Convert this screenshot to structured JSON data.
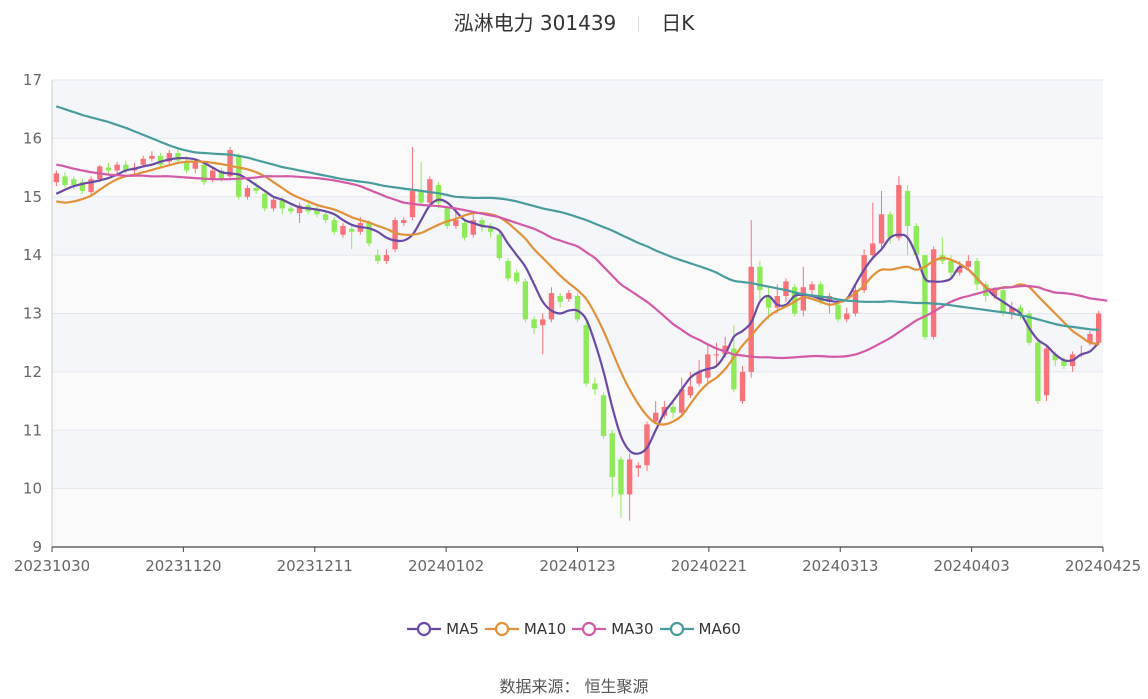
{
  "header": {
    "name": "泓淋电力 301439",
    "period": "日K"
  },
  "source": "数据来源： 恒生聚源",
  "colors": {
    "up": "#f87379",
    "down": "#8fea59",
    "MA5": "#6a4aa5",
    "MA10": "#e0913a",
    "MA30": "#d35aa6",
    "MA60": "#4a9c9c"
  },
  "chart_data": {
    "type": "candlestick",
    "ylim": [
      9,
      17
    ],
    "y_ticks": [
      "9",
      "10",
      "11",
      "12",
      "13",
      "14",
      "15",
      "16",
      "17"
    ],
    "x_ticks": [
      "20231030",
      "20231120",
      "20231211",
      "20240102",
      "20240123",
      "20240221",
      "20240313",
      "20240403",
      "20240425"
    ],
    "legend": [
      "MA5",
      "MA10",
      "MA30",
      "MA60"
    ],
    "candles": [
      [
        15.25,
        15.4,
        15.45,
        15.18
      ],
      [
        15.35,
        15.2,
        15.42,
        15.15
      ],
      [
        15.3,
        15.2,
        15.35,
        15.12
      ],
      [
        15.25,
        15.1,
        15.3,
        15.05
      ],
      [
        15.08,
        15.3,
        15.35,
        15.0
      ],
      [
        15.3,
        15.52,
        15.55,
        15.25
      ],
      [
        15.5,
        15.45,
        15.58,
        15.4
      ],
      [
        15.45,
        15.55,
        15.6,
        15.4
      ],
      [
        15.55,
        15.45,
        15.62,
        15.4
      ],
      [
        15.45,
        15.5,
        15.58,
        15.4
      ],
      [
        15.55,
        15.65,
        15.7,
        15.5
      ],
      [
        15.65,
        15.7,
        15.78,
        15.6
      ],
      [
        15.7,
        15.55,
        15.75,
        15.5
      ],
      [
        15.6,
        15.75,
        15.8,
        15.55
      ],
      [
        15.75,
        15.62,
        15.85,
        15.55
      ],
      [
        15.6,
        15.45,
        15.7,
        15.4
      ],
      [
        15.48,
        15.6,
        15.65,
        15.4
      ],
      [
        15.55,
        15.25,
        15.6,
        15.2
      ],
      [
        15.3,
        15.45,
        15.5,
        15.25
      ],
      [
        15.45,
        15.3,
        15.5,
        15.25
      ],
      [
        15.35,
        15.8,
        15.85,
        15.3
      ],
      [
        15.7,
        15.0,
        15.75,
        14.95
      ],
      [
        15.0,
        15.15,
        15.2,
        14.95
      ],
      [
        15.15,
        15.1,
        15.25,
        15.05
      ],
      [
        15.05,
        14.8,
        15.1,
        14.75
      ],
      [
        14.8,
        14.95,
        15.0,
        14.75
      ],
      [
        14.95,
        14.8,
        15.0,
        14.7
      ],
      [
        14.8,
        14.75,
        14.85,
        14.7
      ],
      [
        14.72,
        14.85,
        14.9,
        14.55
      ],
      [
        14.85,
        14.75,
        14.9,
        14.7
      ],
      [
        14.8,
        14.7,
        14.85,
        14.65
      ],
      [
        14.7,
        14.6,
        14.75,
        14.55
      ],
      [
        14.6,
        14.4,
        14.65,
        14.35
      ],
      [
        14.35,
        14.5,
        14.55,
        14.3
      ],
      [
        14.45,
        14.4,
        14.5,
        14.1
      ],
      [
        14.4,
        14.55,
        14.65,
        14.35
      ],
      [
        14.55,
        14.2,
        14.6,
        14.15
      ],
      [
        14.0,
        13.9,
        14.1,
        13.85
      ],
      [
        13.9,
        14.0,
        14.1,
        13.85
      ],
      [
        14.1,
        14.6,
        14.65,
        14.05
      ],
      [
        14.55,
        14.6,
        14.65,
        14.5
      ],
      [
        14.65,
        15.1,
        15.85,
        14.6
      ],
      [
        15.1,
        14.9,
        15.6,
        14.85
      ],
      [
        14.9,
        15.3,
        15.35,
        14.85
      ],
      [
        15.2,
        14.9,
        15.25,
        14.8
      ],
      [
        14.8,
        14.5,
        14.85,
        14.45
      ],
      [
        14.5,
        14.6,
        14.8,
        14.45
      ],
      [
        14.55,
        14.3,
        14.6,
        14.25
      ],
      [
        14.35,
        14.6,
        14.7,
        14.3
      ],
      [
        14.6,
        14.5,
        14.65,
        14.4
      ],
      [
        14.5,
        14.4,
        14.55,
        14.3
      ],
      [
        14.35,
        13.95,
        14.4,
        13.9
      ],
      [
        13.9,
        13.6,
        13.95,
        13.55
      ],
      [
        13.7,
        13.55,
        13.75,
        13.5
      ],
      [
        13.55,
        12.9,
        13.6,
        12.85
      ],
      [
        12.9,
        12.75,
        12.95,
        12.65
      ],
      [
        12.8,
        12.9,
        13.0,
        12.3
      ],
      [
        12.9,
        13.35,
        13.45,
        12.85
      ],
      [
        13.3,
        13.2,
        13.35,
        13.1
      ],
      [
        13.25,
        13.35,
        13.4,
        13.2
      ],
      [
        13.3,
        12.9,
        13.35,
        12.85
      ],
      [
        12.8,
        11.8,
        12.85,
        11.75
      ],
      [
        11.8,
        11.7,
        11.9,
        11.6
      ],
      [
        11.6,
        10.9,
        11.65,
        10.85
      ],
      [
        10.95,
        10.2,
        11.0,
        9.85
      ],
      [
        10.5,
        9.9,
        10.55,
        9.5
      ],
      [
        9.9,
        10.5,
        10.6,
        9.45
      ],
      [
        10.35,
        10.4,
        10.45,
        10.2
      ],
      [
        10.4,
        11.1,
        11.15,
        10.3
      ],
      [
        11.15,
        11.3,
        11.5,
        11.1
      ],
      [
        11.25,
        11.4,
        11.5,
        11.2
      ],
      [
        11.4,
        11.3,
        11.5,
        11.2
      ],
      [
        11.3,
        11.7,
        11.9,
        11.25
      ],
      [
        11.6,
        11.75,
        12.0,
        11.55
      ],
      [
        11.8,
        12.0,
        12.2,
        11.75
      ],
      [
        11.9,
        12.3,
        12.45,
        11.8
      ],
      [
        12.3,
        12.3,
        12.5,
        12.1
      ],
      [
        12.3,
        12.45,
        12.6,
        12.25
      ],
      [
        12.4,
        11.7,
        12.8,
        11.65
      ],
      [
        11.5,
        12.0,
        12.1,
        11.45
      ],
      [
        12.0,
        13.8,
        14.6,
        11.9
      ],
      [
        13.8,
        13.4,
        13.9,
        13.2
      ],
      [
        13.3,
        13.1,
        13.45,
        12.9
      ],
      [
        13.1,
        13.3,
        13.5,
        13.0
      ],
      [
        13.3,
        13.55,
        13.6,
        13.2
      ],
      [
        13.45,
        13.0,
        13.5,
        12.95
      ],
      [
        13.05,
        13.45,
        13.8,
        12.95
      ],
      [
        13.4,
        13.5,
        13.55,
        13.3
      ],
      [
        13.5,
        13.2,
        13.55,
        13.15
      ],
      [
        13.2,
        13.3,
        13.35,
        13.0
      ],
      [
        13.15,
        12.9,
        13.2,
        12.85
      ],
      [
        12.9,
        13.0,
        13.1,
        12.85
      ],
      [
        13.0,
        13.4,
        13.5,
        12.95
      ],
      [
        13.4,
        14.0,
        14.1,
        13.35
      ],
      [
        14.0,
        14.2,
        14.9,
        13.95
      ],
      [
        14.2,
        14.7,
        15.1,
        14.1
      ],
      [
        14.7,
        14.3,
        14.75,
        14.2
      ],
      [
        14.3,
        15.2,
        15.35,
        14.25
      ],
      [
        15.1,
        14.5,
        15.2,
        14.0
      ],
      [
        14.5,
        14.0,
        14.55,
        13.95
      ],
      [
        14.0,
        12.6,
        14.0,
        12.55
      ],
      [
        12.6,
        14.1,
        14.15,
        12.55
      ],
      [
        14.0,
        13.9,
        14.3,
        13.85
      ],
      [
        13.9,
        13.7,
        14.0,
        13.6
      ],
      [
        13.7,
        13.8,
        13.9,
        13.65
      ],
      [
        13.8,
        13.9,
        14.0,
        13.75
      ],
      [
        13.9,
        13.5,
        13.95,
        13.4
      ],
      [
        13.5,
        13.3,
        13.55,
        13.2
      ],
      [
        13.3,
        13.4,
        13.45,
        13.25
      ],
      [
        13.4,
        13.0,
        13.45,
        12.95
      ],
      [
        13.0,
        13.1,
        13.2,
        12.9
      ],
      [
        13.1,
        13.0,
        13.15,
        12.9
      ],
      [
        13.0,
        12.5,
        13.05,
        12.45
      ],
      [
        12.5,
        11.5,
        12.55,
        11.45
      ],
      [
        11.6,
        12.4,
        12.45,
        11.5
      ],
      [
        12.3,
        12.2,
        12.35,
        12.1
      ],
      [
        12.2,
        12.1,
        12.25,
        12.05
      ],
      [
        12.1,
        12.3,
        12.35,
        12.0
      ],
      [
        12.3,
        12.3,
        12.45,
        12.25
      ],
      [
        12.5,
        12.65,
        12.7,
        12.45
      ],
      [
        12.5,
        13.0,
        13.05,
        12.45
      ]
    ],
    "series": [
      {
        "name": "MA5",
        "values": [
          15.05,
          15.12,
          15.18,
          15.22,
          15.25,
          15.28,
          15.32,
          15.38,
          15.45,
          15.48,
          15.52,
          15.55,
          15.6,
          15.64,
          15.66,
          15.66,
          15.64,
          15.58,
          15.5,
          15.42,
          15.4,
          15.38,
          15.3,
          15.2,
          15.1,
          15.0,
          14.95,
          14.88,
          14.82,
          14.8,
          14.78,
          14.75,
          14.7,
          14.6,
          14.52,
          14.48,
          14.46,
          14.4,
          14.3,
          14.25,
          14.25,
          14.35,
          14.6,
          14.85,
          14.95,
          14.9,
          14.75,
          14.6,
          14.55,
          14.5,
          14.48,
          14.42,
          14.2,
          14.0,
          13.8,
          13.5,
          13.2,
          13.05,
          13.0,
          13.05,
          13.05,
          12.9,
          12.5,
          12.0,
          11.4,
          10.9,
          10.65,
          10.6,
          10.7,
          11.0,
          11.3,
          11.5,
          11.7,
          11.9,
          12.0,
          12.05,
          12.1,
          12.3,
          12.6,
          12.7,
          12.85,
          13.2,
          13.3,
          13.15,
          13.15,
          13.3,
          13.32,
          13.3,
          13.25,
          13.22,
          13.2,
          13.25,
          13.5,
          13.75,
          13.95,
          14.1,
          14.3,
          14.35,
          14.3,
          14.0,
          13.6,
          13.55,
          13.55,
          13.6,
          13.8,
          13.75,
          13.6,
          13.45,
          13.3,
          13.2,
          13.1,
          13.0,
          12.75,
          12.55,
          12.45,
          12.3,
          12.2,
          12.2,
          12.3,
          12.35,
          12.5
        ]
      },
      {
        "name": "MA10",
        "values": [
          14.92,
          14.9,
          14.92,
          14.96,
          15.02,
          15.12,
          15.22,
          15.3,
          15.35,
          15.38,
          15.42,
          15.46,
          15.5,
          15.54,
          15.58,
          15.6,
          15.6,
          15.6,
          15.58,
          15.56,
          15.53,
          15.5,
          15.47,
          15.42,
          15.35,
          15.25,
          15.15,
          15.05,
          14.98,
          14.92,
          14.86,
          14.82,
          14.78,
          14.72,
          14.65,
          14.6,
          14.56,
          14.5,
          14.45,
          14.38,
          14.35,
          14.35,
          14.38,
          14.45,
          14.52,
          14.58,
          14.62,
          14.68,
          14.72,
          14.72,
          14.7,
          14.65,
          14.55,
          14.42,
          14.28,
          14.1,
          13.95,
          13.8,
          13.65,
          13.52,
          13.4,
          13.25,
          13.0,
          12.7,
          12.35,
          12.0,
          11.7,
          11.45,
          11.25,
          11.12,
          11.1,
          11.15,
          11.25,
          11.45,
          11.65,
          11.8,
          11.9,
          12.05,
          12.25,
          12.45,
          12.62,
          12.8,
          12.95,
          13.05,
          13.12,
          13.2,
          13.28,
          13.25,
          13.2,
          13.15,
          13.18,
          13.25,
          13.35,
          13.48,
          13.65,
          13.75,
          13.75,
          13.78,
          13.8,
          13.75,
          13.8,
          13.9,
          13.95,
          13.92,
          13.85,
          13.75,
          13.6,
          13.45,
          13.4,
          13.45,
          13.45,
          13.5,
          13.45,
          13.3,
          13.15,
          13.0,
          12.85,
          12.7,
          12.6,
          12.5,
          12.48
        ]
      },
      {
        "name": "MA30",
        "values": [
          15.55,
          15.52,
          15.48,
          15.45,
          15.42,
          15.4,
          15.38,
          15.37,
          15.36,
          15.36,
          15.36,
          15.35,
          15.35,
          15.35,
          15.34,
          15.33,
          15.32,
          15.31,
          15.3,
          15.3,
          15.3,
          15.31,
          15.32,
          15.33,
          15.35,
          15.35,
          15.35,
          15.35,
          15.34,
          15.33,
          15.32,
          15.3,
          15.28,
          15.25,
          15.22,
          15.18,
          15.12,
          15.06,
          15.0,
          14.95,
          14.9,
          14.88,
          14.86,
          14.85,
          14.84,
          14.82,
          14.8,
          14.77,
          14.74,
          14.71,
          14.68,
          14.65,
          14.6,
          14.55,
          14.5,
          14.45,
          14.38,
          14.3,
          14.25,
          14.2,
          14.15,
          14.05,
          13.95,
          13.8,
          13.65,
          13.5,
          13.4,
          13.3,
          13.2,
          13.08,
          12.95,
          12.82,
          12.72,
          12.62,
          12.55,
          12.47,
          12.4,
          12.35,
          12.3,
          12.28,
          12.26,
          12.25,
          12.25,
          12.24,
          12.24,
          12.25,
          12.26,
          12.27,
          12.27,
          12.26,
          12.26,
          12.27,
          12.3,
          12.35,
          12.42,
          12.5,
          12.58,
          12.68,
          12.78,
          12.88,
          12.95,
          13.03,
          13.12,
          13.2,
          13.26,
          13.3,
          13.34,
          13.38,
          13.42,
          13.44,
          13.45,
          13.47,
          13.47,
          13.45,
          13.4,
          13.36,
          13.35,
          13.33,
          13.3,
          13.26,
          13.24,
          13.22
        ]
      },
      {
        "name": "MA60",
        "values": [
          16.55,
          16.5,
          16.45,
          16.4,
          16.36,
          16.32,
          16.28,
          16.23,
          16.18,
          16.12,
          16.06,
          16.0,
          15.94,
          15.88,
          15.83,
          15.79,
          15.76,
          15.75,
          15.74,
          15.73,
          15.72,
          15.7,
          15.67,
          15.63,
          15.59,
          15.55,
          15.51,
          15.48,
          15.45,
          15.42,
          15.39,
          15.36,
          15.33,
          15.3,
          15.28,
          15.26,
          15.24,
          15.21,
          15.18,
          15.16,
          15.14,
          15.12,
          15.1,
          15.08,
          15.06,
          15.03,
          15.0,
          14.99,
          14.98,
          14.98,
          14.98,
          14.97,
          14.95,
          14.92,
          14.88,
          14.84,
          14.8,
          14.77,
          14.74,
          14.7,
          14.65,
          14.6,
          14.54,
          14.48,
          14.42,
          14.35,
          14.28,
          14.21,
          14.15,
          14.08,
          14.02,
          13.96,
          13.91,
          13.86,
          13.81,
          13.76,
          13.7,
          13.62,
          13.56,
          13.54,
          13.52,
          13.49,
          13.46,
          13.43,
          13.4,
          13.36,
          13.33,
          13.31,
          13.29,
          13.27,
          13.24,
          13.22,
          13.21,
          13.2,
          13.2,
          13.2,
          13.21,
          13.2,
          13.19,
          13.18,
          13.18,
          13.17,
          13.16,
          13.14,
          13.12,
          13.1,
          13.08,
          13.06,
          13.04,
          13.02,
          13.0,
          12.97,
          12.94,
          12.9,
          12.86,
          12.82,
          12.79,
          12.77,
          12.75,
          12.73,
          12.72
        ]
      }
    ]
  }
}
